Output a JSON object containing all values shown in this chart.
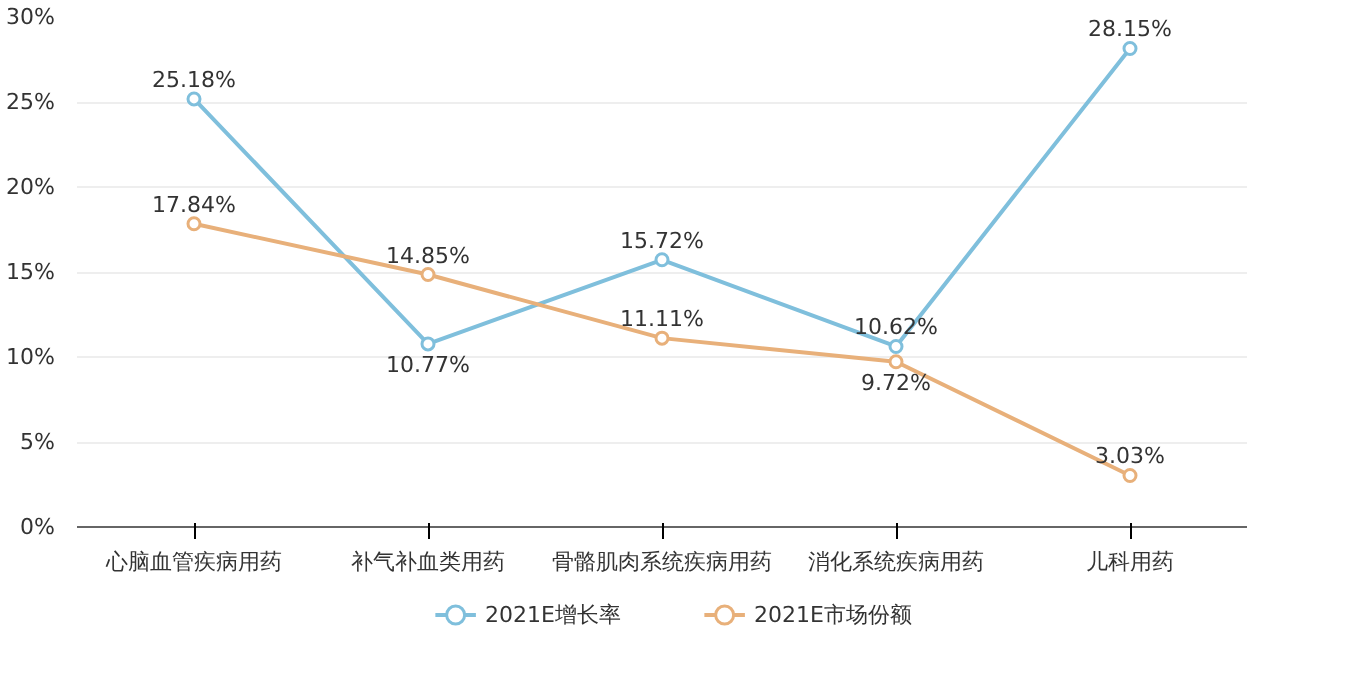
{
  "chart_data": {
    "type": "line",
    "categories": [
      "心脑血管疾病用药",
      "补气补血类用药",
      "骨骼肌肉系统疾病用药",
      "消化系统疾病用药",
      "儿科用药"
    ],
    "series": [
      {
        "name": "2021E增长率",
        "color": "#7fbfdc",
        "values": [
          25.18,
          10.77,
          15.72,
          10.62,
          28.15
        ],
        "value_labels": [
          "25.18%",
          "10.77%",
          "15.72%",
          "10.62%",
          "28.15%"
        ]
      },
      {
        "name": "2021E市场份额",
        "color": "#e8b07a",
        "values": [
          17.84,
          14.85,
          11.11,
          9.72,
          3.03
        ],
        "value_labels": [
          "17.84%",
          "14.85%",
          "11.11%",
          "9.72%",
          "3.03%"
        ]
      }
    ],
    "ylim": [
      0,
      30
    ],
    "yticks": [
      {
        "value": 0,
        "label": "0%"
      },
      {
        "value": 5,
        "label": "5%"
      },
      {
        "value": 10,
        "label": "10%"
      },
      {
        "value": 15,
        "label": "15%"
      },
      {
        "value": 20,
        "label": "20%"
      },
      {
        "value": 25,
        "label": "25%"
      },
      {
        "value": 30,
        "label": "30%"
      }
    ],
    "grid": "y",
    "legend": "bottom",
    "marker": "circle",
    "line_style": "solid"
  }
}
